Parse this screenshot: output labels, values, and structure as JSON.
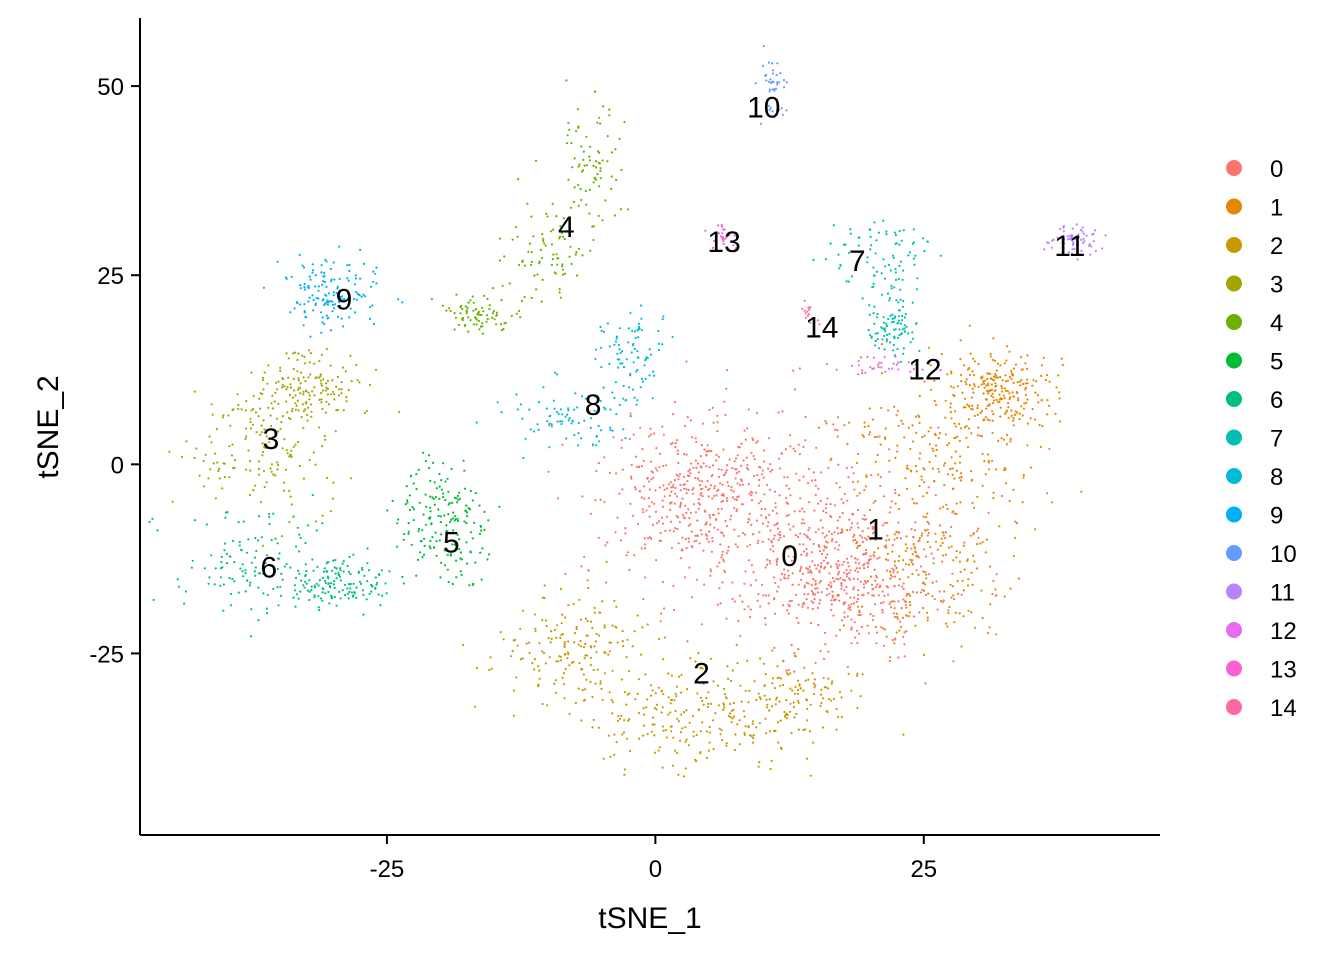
{
  "chart_data": {
    "type": "scatter",
    "title": "",
    "xlabel": "tSNE_1",
    "ylabel": "tSNE_2",
    "xlim": [
      -48,
      47
    ],
    "ylim": [
      -49,
      59
    ],
    "x_ticks": [
      -25,
      0,
      25
    ],
    "y_ticks": [
      -25,
      0,
      25,
      50
    ],
    "x_tick_labels": [
      "-25",
      "0",
      "25"
    ],
    "y_tick_labels": [
      "-25",
      "0",
      "25",
      "50"
    ],
    "grid": false,
    "legend_position": "right",
    "series": [
      {
        "name": "0",
        "color": "#F8766D",
        "label": "0",
        "label_pos": [
          12.5,
          -12.0
        ]
      },
      {
        "name": "1",
        "color": "#E58700",
        "label": "1",
        "label_pos": [
          20.5,
          -8.5
        ]
      },
      {
        "name": "2",
        "color": "#C99800",
        "label": "2",
        "label_pos": [
          4.3,
          -27.5
        ]
      },
      {
        "name": "3",
        "color": "#A3A500",
        "label": "3",
        "label_pos": [
          -35.8,
          3.5
        ]
      },
      {
        "name": "4",
        "color": "#6BB100",
        "label": "4",
        "label_pos": [
          -8.3,
          31.5
        ]
      },
      {
        "name": "5",
        "color": "#00BA38",
        "label": "5",
        "label_pos": [
          -19.0,
          -10.2
        ]
      },
      {
        "name": "6",
        "color": "#00BF7D",
        "label": "6",
        "label_pos": [
          -36.0,
          -13.5
        ]
      },
      {
        "name": "7",
        "color": "#00C0AF",
        "label": "7",
        "label_pos": [
          18.8,
          27.0
        ]
      },
      {
        "name": "8",
        "color": "#00BCD8",
        "label": "8",
        "label_pos": [
          -5.8,
          8.0
        ]
      },
      {
        "name": "9",
        "color": "#00B0F6",
        "label": "9",
        "label_pos": [
          -29.0,
          21.9
        ]
      },
      {
        "name": "10",
        "color": "#619CFF",
        "label": "10",
        "label_pos": [
          10.1,
          47.3
        ]
      },
      {
        "name": "11",
        "color": "#B983FF",
        "label": "11",
        "label_pos": [
          38.6,
          29.0
        ]
      },
      {
        "name": "12",
        "color": "#E76BF3",
        "label": "12",
        "label_pos": [
          25.1,
          12.7
        ]
      },
      {
        "name": "13",
        "color": "#FD61D1",
        "label": "13",
        "label_pos": [
          6.4,
          29.5
        ]
      },
      {
        "name": "14",
        "color": "#FF67A4",
        "label": "14",
        "label_pos": [
          15.5,
          18.2
        ]
      }
    ],
    "regions": [
      {
        "cluster": 0,
        "n": 1150,
        "blobs": [
          [
            12,
            -8,
            14,
            13
          ],
          [
            4,
            -4,
            8,
            8
          ],
          [
            18,
            -15,
            7,
            8
          ]
        ]
      },
      {
        "cluster": 1,
        "n": 620,
        "blobs": [
          [
            27,
            3,
            8,
            9
          ],
          [
            26,
            -14,
            7,
            9
          ],
          [
            32,
            10,
            4,
            4
          ]
        ]
      },
      {
        "cluster": 2,
        "n": 520,
        "blobs": [
          [
            2,
            -34,
            8,
            6
          ],
          [
            12,
            -31,
            7,
            5
          ],
          [
            -7,
            -25,
            6,
            6
          ]
        ]
      },
      {
        "cluster": 3,
        "n": 300,
        "blobs": [
          [
            -37,
            2,
            6,
            7
          ],
          [
            -32,
            10,
            4,
            4
          ]
        ]
      },
      {
        "cluster": 4,
        "n": 240,
        "blobs": [
          [
            -6,
            40,
            2.5,
            7
          ],
          [
            -10,
            28,
            3,
            5
          ],
          [
            -16,
            20,
            3,
            2
          ]
        ]
      },
      {
        "cluster": 5,
        "n": 180,
        "blobs": [
          [
            -20,
            -8,
            4,
            6
          ]
        ]
      },
      {
        "cluster": 6,
        "n": 270,
        "blobs": [
          [
            -37,
            -13,
            6,
            6
          ],
          [
            -29,
            -16,
            4,
            3
          ]
        ]
      },
      {
        "cluster": 7,
        "n": 180,
        "blobs": [
          [
            21,
            27,
            4,
            5
          ],
          [
            22,
            18,
            2,
            3
          ]
        ]
      },
      {
        "cluster": 8,
        "n": 170,
        "blobs": [
          [
            -8,
            6,
            6,
            4
          ],
          [
            -2,
            15,
            3,
            5
          ]
        ]
      },
      {
        "cluster": 9,
        "n": 150,
        "blobs": [
          [
            -30,
            23,
            4,
            4
          ]
        ]
      },
      {
        "cluster": 10,
        "n": 40,
        "blobs": [
          [
            11,
            50,
            1,
            3
          ]
        ]
      },
      {
        "cluster": 11,
        "n": 60,
        "blobs": [
          [
            39,
            29.5,
            2.2,
            1.5
          ]
        ]
      },
      {
        "cluster": 12,
        "n": 35,
        "blobs": [
          [
            22,
            13,
            4,
            1.5
          ]
        ]
      },
      {
        "cluster": 13,
        "n": 25,
        "blobs": [
          [
            6,
            30,
            1.2,
            1.2
          ]
        ]
      },
      {
        "cluster": 14,
        "n": 15,
        "blobs": [
          [
            14,
            20,
            1,
            1.5
          ]
        ]
      }
    ]
  }
}
